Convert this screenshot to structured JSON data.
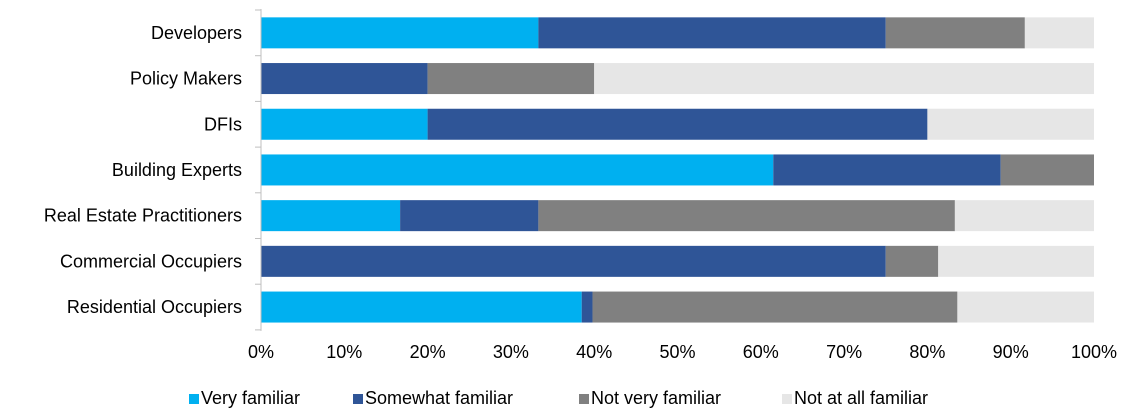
{
  "chart_data": {
    "type": "bar",
    "orientation": "horizontal",
    "stacked": true,
    "title": "",
    "xlabel": "",
    "ylabel": "",
    "xlim": [
      0,
      100
    ],
    "x_ticks": [
      0,
      10,
      20,
      30,
      40,
      50,
      60,
      70,
      80,
      90,
      100
    ],
    "x_tick_labels": [
      "0%",
      "10%",
      "20%",
      "30%",
      "40%",
      "50%",
      "60%",
      "70%",
      "80%",
      "90%",
      "100%"
    ],
    "grid": false,
    "legend_position": "bottom",
    "categories": [
      "Developers",
      "Policy Makers",
      "DFIs",
      "Building Experts",
      "Real Estate Practitioners",
      "Commercial Occupiers",
      "Residential Occupiers"
    ],
    "series": [
      {
        "name": "Very familiar",
        "color": "#00b0f0",
        "values": [
          33.3,
          0,
          20,
          61.5,
          16.7,
          0,
          38.5
        ]
      },
      {
        "name": "Somewhat familiar",
        "color": "#2f5597",
        "values": [
          41.7,
          20,
          60,
          27.3,
          16.6,
          75,
          1.3
        ]
      },
      {
        "name": "Not very familiar",
        "color": "#808080",
        "values": [
          16.7,
          20,
          0,
          11.2,
          50,
          6.3,
          43.8
        ]
      },
      {
        "name": "Not at all familiar",
        "color": "#e6e6e6",
        "values": [
          8.3,
          60,
          20,
          0,
          16.7,
          18.7,
          16.4
        ]
      }
    ]
  }
}
